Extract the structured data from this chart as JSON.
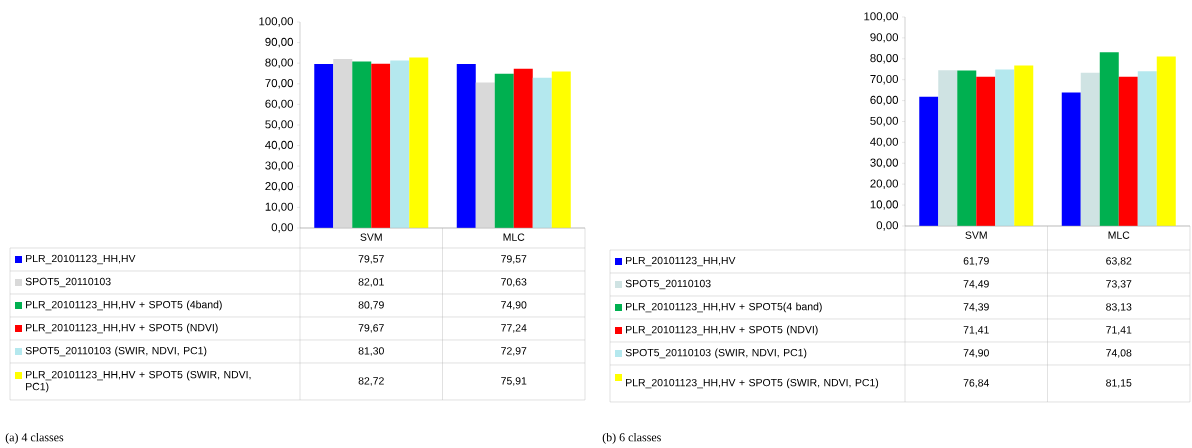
{
  "chart_data": [
    {
      "type": "bar",
      "categories": [
        "SVM",
        "MLC"
      ],
      "ylim": [
        0,
        100
      ],
      "legend": "bottom",
      "yticks": [
        {
          "value": 0,
          "label": "0,00"
        },
        {
          "value": 10,
          "label": "10,00"
        },
        {
          "value": 20,
          "label": "20,00"
        },
        {
          "value": 30,
          "label": "30,00"
        },
        {
          "value": 40,
          "label": "40,00"
        },
        {
          "value": 50,
          "label": "50,00"
        },
        {
          "value": 60,
          "label": "60,00"
        },
        {
          "value": 70,
          "label": "70,00"
        },
        {
          "value": 80,
          "label": "80,00"
        },
        {
          "value": 90,
          "label": "90,00"
        },
        {
          "value": 100,
          "label": "100,00"
        }
      ],
      "series": [
        {
          "name": "PLR_20101123_HH,HV",
          "color": "#0000ff",
          "values": [
            79.57,
            79.57
          ],
          "value_labels": [
            "79,57",
            "79,57"
          ]
        },
        {
          "name": "SPOT5_20110103",
          "color": "#d9d9d9",
          "values": [
            82.01,
            70.63
          ],
          "value_labels": [
            "82,01",
            "70,63"
          ]
        },
        {
          "name": "PLR_20101123_HH,HV + SPOT5 (4band)",
          "color": "#00b050",
          "values": [
            80.79,
            74.9
          ],
          "value_labels": [
            "80,79",
            "74,90"
          ]
        },
        {
          "name": "PLR_20101123_HH,HV + SPOT5 (NDVI)",
          "color": "#ff0000",
          "values": [
            79.67,
            77.24
          ],
          "value_labels": [
            "79,67",
            "77,24"
          ]
        },
        {
          "name": "SPOT5_20110103 (SWIR, NDVI, PC1)",
          "color": "#b4e8ee",
          "values": [
            81.3,
            72.97
          ],
          "value_labels": [
            "81,30",
            "72,97"
          ]
        },
        {
          "name": "PLR_20101123_HH,HV + SPOT5 (SWIR, NDVI, PC1)",
          "color": "#ffff00",
          "values": [
            82.72,
            75.91
          ],
          "value_labels": [
            "82,72",
            "75,91"
          ]
        }
      ],
      "annotations": [
        "(a) 4 classes"
      ]
    },
    {
      "type": "bar",
      "categories": [
        "SVM",
        "MLC"
      ],
      "ylim": [
        0,
        100
      ],
      "legend": "bottom",
      "yticks": [
        {
          "value": 0,
          "label": "0,00"
        },
        {
          "value": 10,
          "label": "10,00"
        },
        {
          "value": 20,
          "label": "20,00"
        },
        {
          "value": 30,
          "label": "30,00"
        },
        {
          "value": 40,
          "label": "40,00"
        },
        {
          "value": 50,
          "label": "50,00"
        },
        {
          "value": 60,
          "label": "60,00"
        },
        {
          "value": 70,
          "label": "70,00"
        },
        {
          "value": 80,
          "label": "80,00"
        },
        {
          "value": 90,
          "label": "90,00"
        },
        {
          "value": 100,
          "label": "100,00"
        }
      ],
      "series": [
        {
          "name": "PLR_20101123_HH,HV",
          "color": "#0000ff",
          "values": [
            61.79,
            63.82
          ],
          "value_labels": [
            "61,79",
            "63,82"
          ]
        },
        {
          "name": "SPOT5_20110103",
          "color": "#cfe3e3",
          "values": [
            74.49,
            73.37
          ],
          "value_labels": [
            "74,49",
            "73,37"
          ]
        },
        {
          "name": "PLR_20101123_HH,HV + SPOT5(4 band)",
          "color": "#00b050",
          "values": [
            74.39,
            83.13
          ],
          "value_labels": [
            "74,39",
            "83,13"
          ]
        },
        {
          "name": "PLR_20101123_HH,HV + SPOT5 (NDVI)",
          "color": "#ff0000",
          "values": [
            71.41,
            71.41
          ],
          "value_labels": [
            "71,41",
            "71,41"
          ]
        },
        {
          "name": "SPOT5_20110103 (SWIR, NDVI, PC1)",
          "color": "#b4e8ee",
          "values": [
            74.9,
            74.08
          ],
          "value_labels": [
            "74,90",
            "74,08"
          ]
        },
        {
          "name": "PLR_20101123_HH,HV + SPOT5 (SWIR, NDVI, PC1)",
          "color": "#ffff00",
          "values": [
            76.84,
            81.15
          ],
          "value_labels": [
            "76,84",
            "81,15"
          ]
        }
      ],
      "annotations": [
        "(b) 6 classes"
      ]
    }
  ]
}
